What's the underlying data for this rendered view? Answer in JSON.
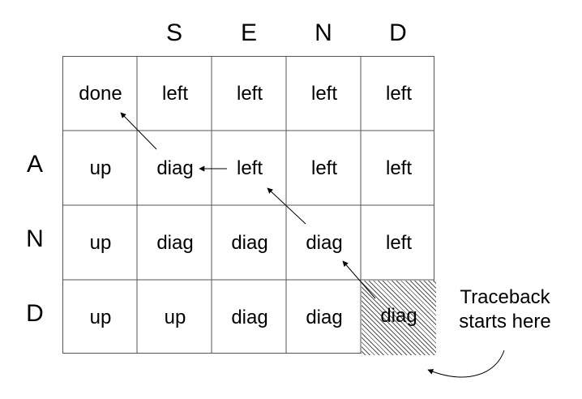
{
  "columns": [
    "S",
    "E",
    "N",
    "D"
  ],
  "rows": [
    "A",
    "N",
    "D"
  ],
  "cells": [
    [
      "done",
      "left",
      "left",
      "left",
      "left"
    ],
    [
      "up",
      "diag",
      "left",
      "left",
      "left"
    ],
    [
      "up",
      "diag",
      "diag",
      "diag",
      "left"
    ],
    [
      "up",
      "up",
      "diag",
      "diag",
      "diag"
    ]
  ],
  "traceback_path": [
    [
      3,
      4
    ],
    [
      2,
      3
    ],
    [
      1,
      2
    ],
    [
      1,
      1
    ],
    [
      0,
      0
    ]
  ],
  "traceback_start": [
    3,
    4
  ],
  "annotation": {
    "line1": "Traceback",
    "line2": "starts here"
  }
}
